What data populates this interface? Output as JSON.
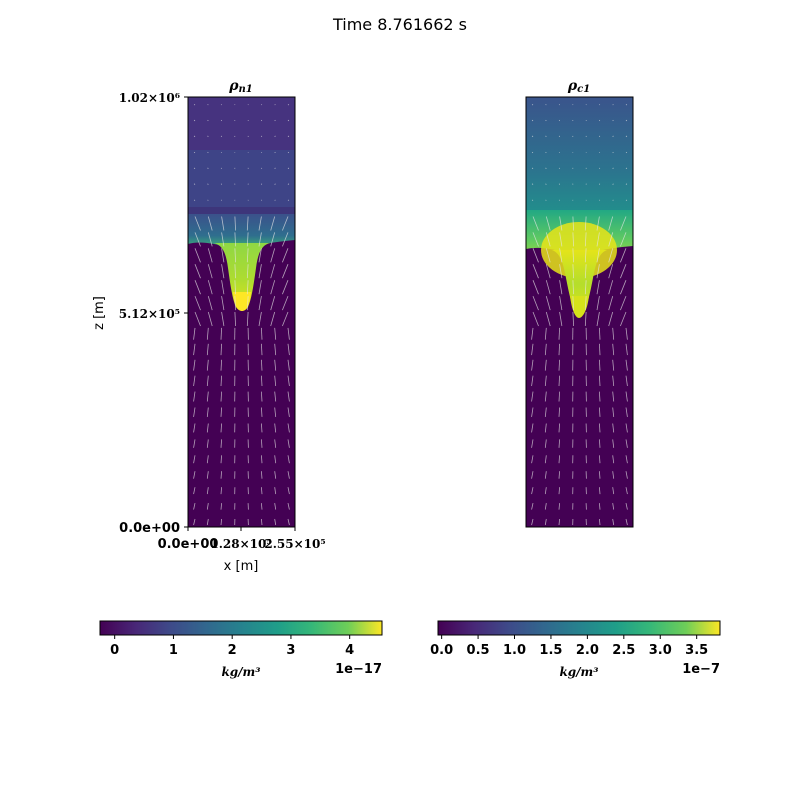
{
  "figure": {
    "suptitle": "Time 8.761662 s",
    "colors": {
      "low": "#440154",
      "mid": "#21918c",
      "high": "#fde725",
      "vector": "#e6e6e6"
    }
  },
  "chart_data": [
    {
      "type": "heatmap",
      "title": "ρ n1",
      "title_main": "ρ",
      "title_sub": "n1",
      "xlabel": "x [m]",
      "ylabel": "z [m]",
      "x_ticks": [
        "0.0e+00",
        "1.28×10⁵",
        "2.55×10⁵"
      ],
      "y_ticks": [
        "0.0e+00",
        "5.12×10⁵",
        "1.02×10⁶"
      ],
      "xlim": [
        0,
        255000
      ],
      "ylim": [
        0,
        1020000
      ],
      "colormap": "viridis",
      "overlay": "velocity vectors",
      "colorbar": {
        "ticks": [
          "0",
          "1",
          "2",
          "3",
          "4"
        ],
        "tick_values": [
          0,
          1,
          2,
          3,
          4
        ],
        "range": [
          -0.25,
          4.55
        ],
        "offset": "1e−17",
        "label": "kg/m³"
      }
    },
    {
      "type": "heatmap",
      "title": "ρ c1",
      "title_main": "ρ",
      "title_sub": "c1",
      "xlim": [
        0,
        255000
      ],
      "ylim": [
        0,
        1020000
      ],
      "colormap": "viridis",
      "overlay": "velocity vectors",
      "colorbar": {
        "ticks": [
          "0.0",
          "0.5",
          "1.0",
          "1.5",
          "2.0",
          "2.5",
          "3.0",
          "3.5"
        ],
        "tick_values": [
          0,
          0.5,
          1.0,
          1.5,
          2.0,
          2.5,
          3.0,
          3.5
        ],
        "range": [
          -0.05,
          3.82
        ],
        "offset": "1e−7",
        "label": "kg/m³"
      }
    }
  ]
}
